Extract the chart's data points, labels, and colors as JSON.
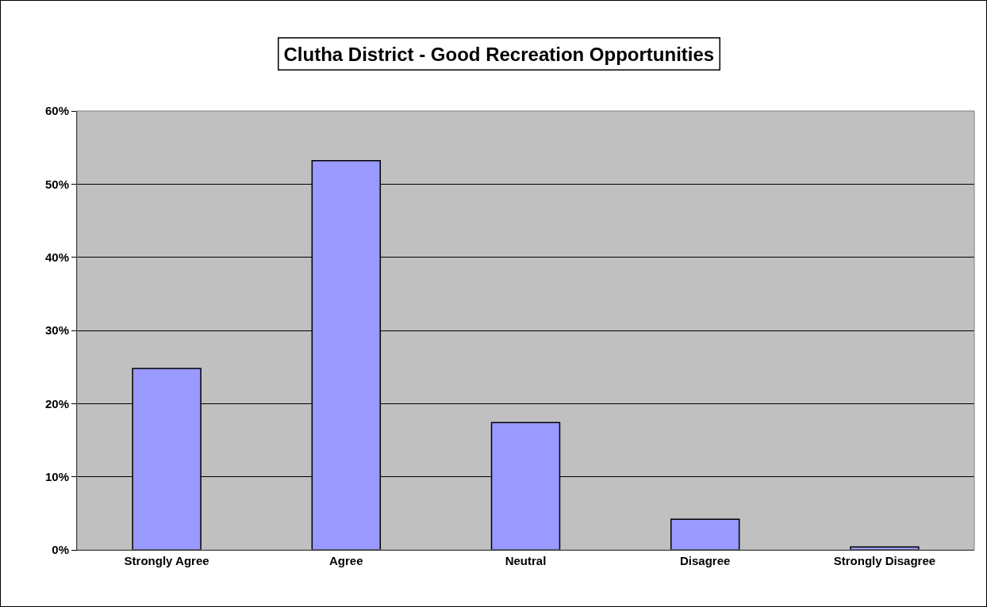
{
  "chart_data": {
    "type": "bar",
    "title": "Clutha District - Good Recreation Opportunities",
    "categories": [
      "Strongly Agree",
      "Agree",
      "Neutral",
      "Disagree",
      "Strongly Disagree"
    ],
    "values": [
      24.8,
      53.2,
      17.4,
      4.2,
      0.4
    ],
    "color": "#9999ff",
    "ylim": [
      0,
      60
    ],
    "yticks": [
      {
        "value": 0,
        "label": "0%"
      },
      {
        "value": 10,
        "label": "10%"
      },
      {
        "value": 20,
        "label": "20%"
      },
      {
        "value": 30,
        "label": "30%"
      },
      {
        "value": 40,
        "label": "40%"
      },
      {
        "value": 50,
        "label": "50%"
      },
      {
        "value": 60,
        "label": "60%"
      }
    ],
    "grid": "y"
  }
}
